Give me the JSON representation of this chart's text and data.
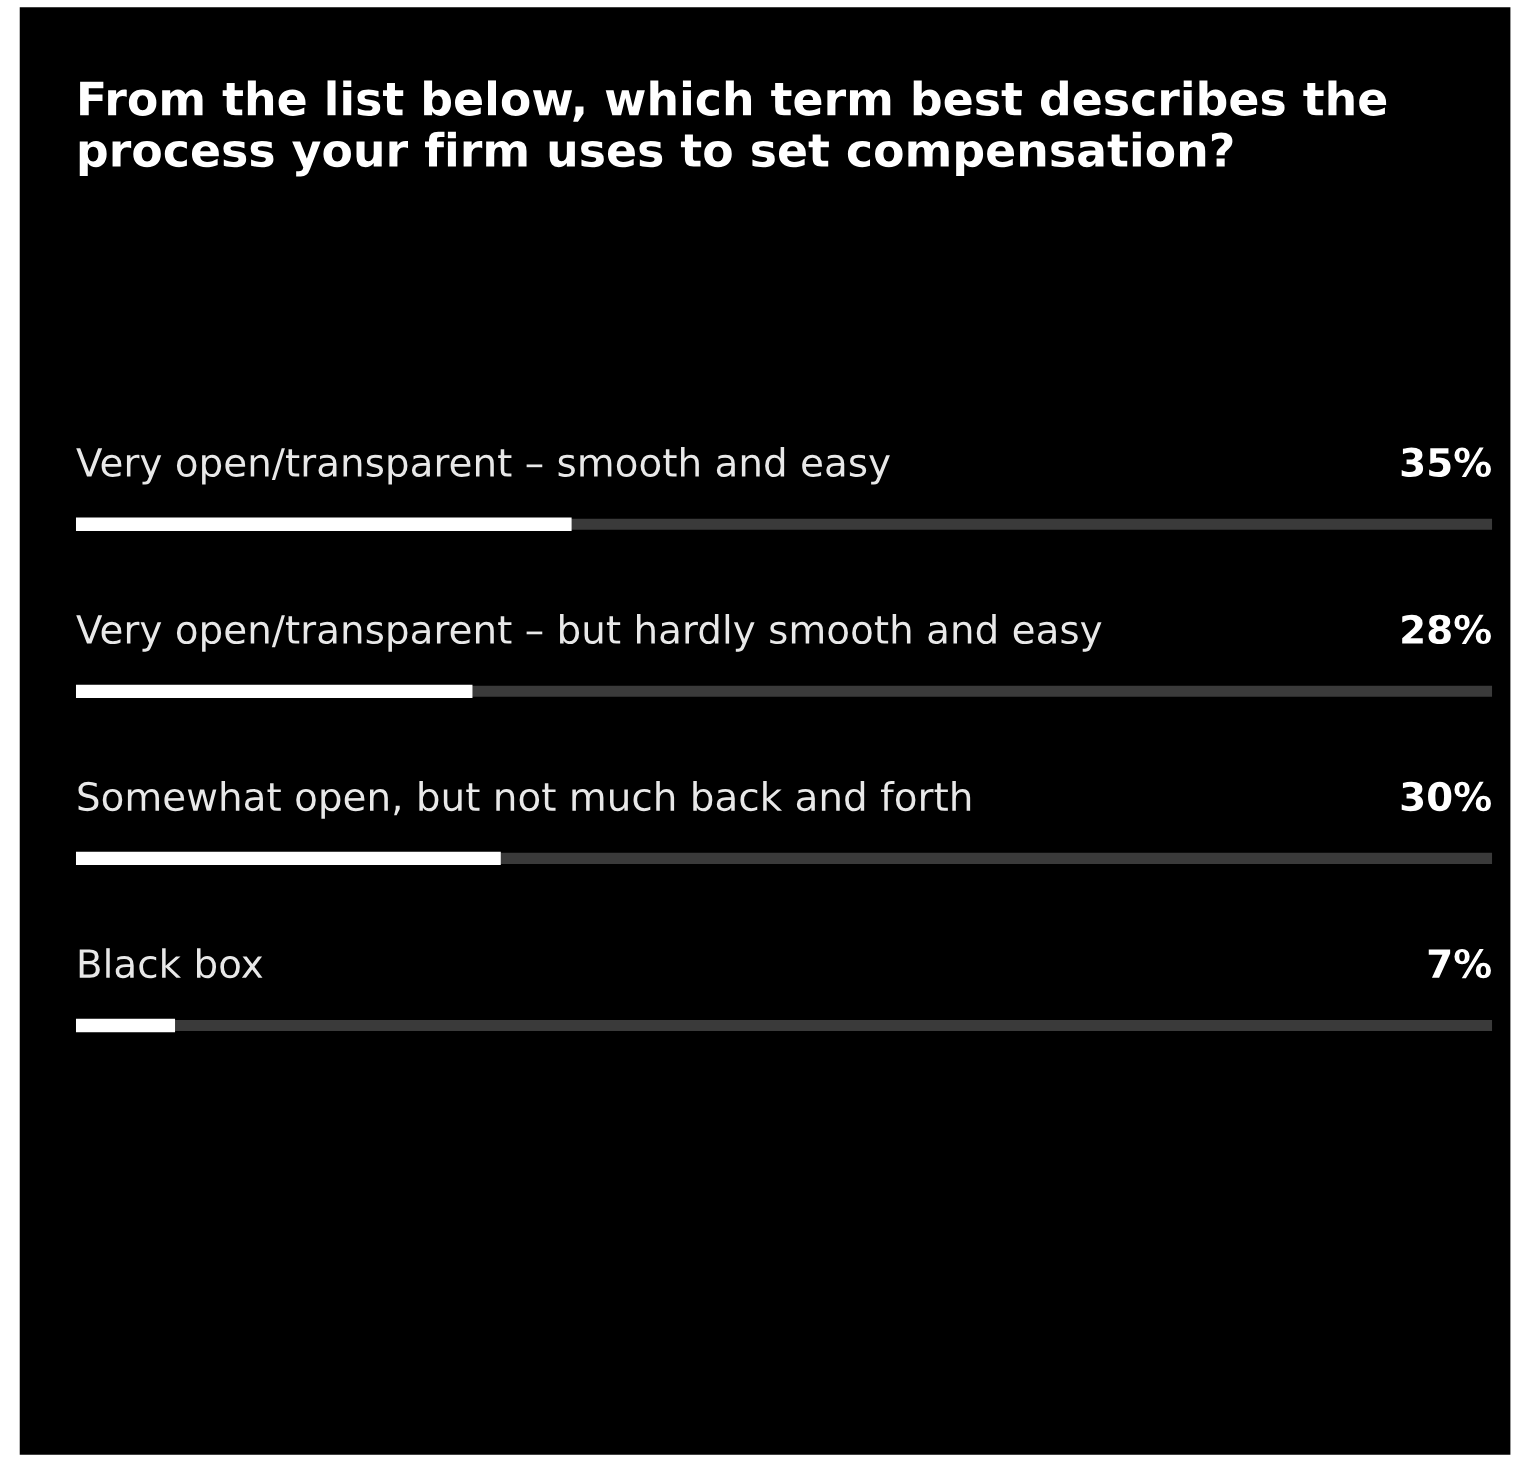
{
  "chart_data": {
    "type": "bar",
    "orientation": "horizontal",
    "title": "From the list below, which term best describes the process your firm uses to set compensation?",
    "categories": [
      "Very open/transparent – smooth and easy",
      "Very open/transparent – but hardly smooth and easy",
      "Somewhat open, but not much back and forth",
      "Black box"
    ],
    "values": [
      35,
      28,
      30,
      7
    ],
    "value_labels": [
      "35%",
      "28%",
      "30%",
      "7%"
    ],
    "color": "#ffffff",
    "xlim": [
      0,
      100
    ]
  }
}
